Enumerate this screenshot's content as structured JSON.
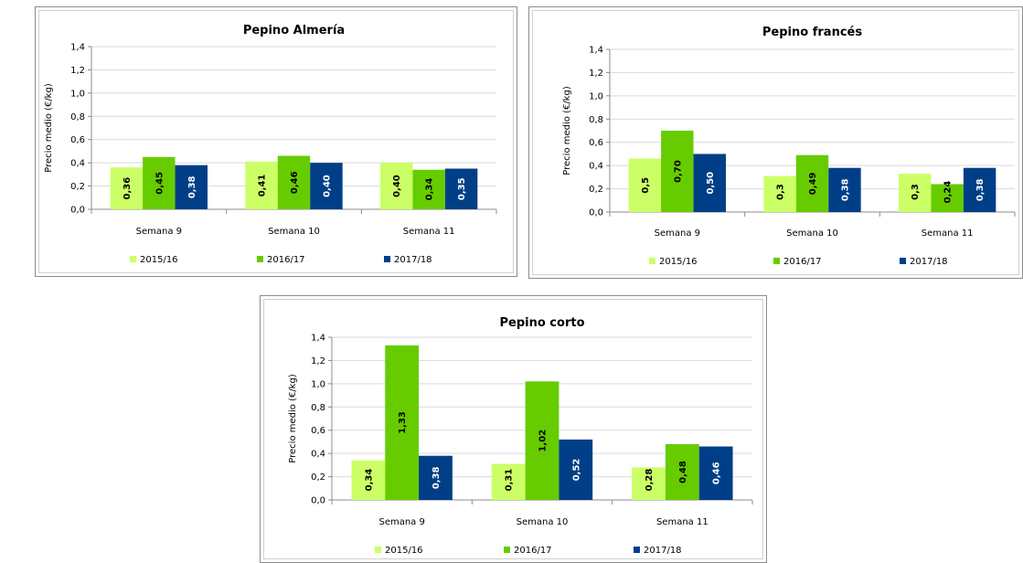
{
  "colors": {
    "2015/16": "#ccff66",
    "2016/17": "#66cc00",
    "2017/18": "#003f87",
    "grid": "#d9d9d9",
    "axis": "#8c8c8c",
    "text": "#000000"
  },
  "chart_data": [
    {
      "type": "bar",
      "title": "Pepino Almería",
      "ylabel": "Precio medio (€/kg)",
      "xlabel": "",
      "ylim": [
        0,
        1.4
      ],
      "yticks": [
        "0,0",
        "0,2",
        "0,4",
        "0,6",
        "0,8",
        "1,0",
        "1,2",
        "1,4"
      ],
      "grid": true,
      "legend_position": "bottom",
      "categories": [
        "Semana 9",
        "Semana 10",
        "Semana 11"
      ],
      "series": [
        {
          "name": "2015/16",
          "values": [
            0.36,
            0.41,
            0.4
          ],
          "labels": [
            "0,36",
            "0,41",
            "0,40"
          ]
        },
        {
          "name": "2016/17",
          "values": [
            0.45,
            0.46,
            0.34
          ],
          "labels": [
            "0,45",
            "0,46",
            "0,34"
          ]
        },
        {
          "name": "2017/18",
          "values": [
            0.38,
            0.4,
            0.35
          ],
          "labels": [
            "0,38",
            "0,40",
            "0,35"
          ]
        }
      ]
    },
    {
      "type": "bar",
      "title": "Pepino francés",
      "ylabel": "Precio medio (€/kg)",
      "xlabel": "",
      "ylim": [
        0,
        1.4
      ],
      "yticks": [
        "0,0",
        "0,2",
        "0,4",
        "0,6",
        "0,8",
        "1,0",
        "1,2",
        "1,4"
      ],
      "grid": true,
      "legend_position": "bottom",
      "categories": [
        "Semana 9",
        "Semana 10",
        "Semana 11"
      ],
      "series": [
        {
          "name": "2015/16",
          "values": [
            0.46,
            0.31,
            0.33
          ],
          "labels": [
            "0,5",
            "0,3",
            "0,3"
          ]
        },
        {
          "name": "2016/17",
          "values": [
            0.7,
            0.49,
            0.24
          ],
          "labels": [
            "0,70",
            "0,49",
            "0,24"
          ]
        },
        {
          "name": "2017/18",
          "values": [
            0.5,
            0.38,
            0.38
          ],
          "labels": [
            "0,50",
            "0,38",
            "0,38"
          ]
        }
      ]
    },
    {
      "type": "bar",
      "title": "Pepino corto",
      "ylabel": "Precio medio (€/kg)",
      "xlabel": "",
      "ylim": [
        0,
        1.4
      ],
      "yticks": [
        "0,0",
        "0,2",
        "0,4",
        "0,6",
        "0,8",
        "1,0",
        "1,2",
        "1,4"
      ],
      "grid": true,
      "legend_position": "bottom",
      "categories": [
        "Semana 9",
        "Semana 10",
        "Semana 11"
      ],
      "series": [
        {
          "name": "2015/16",
          "values": [
            0.34,
            0.31,
            0.28
          ],
          "labels": [
            "0,34",
            "0,31",
            "0,28"
          ]
        },
        {
          "name": "2016/17",
          "values": [
            1.33,
            1.02,
            0.48
          ],
          "labels": [
            "1,33",
            "1,02",
            "0,48"
          ]
        },
        {
          "name": "2017/18",
          "values": [
            0.38,
            0.52,
            0.46
          ],
          "labels": [
            "0,38",
            "0,52",
            "0,46"
          ]
        }
      ]
    }
  ]
}
